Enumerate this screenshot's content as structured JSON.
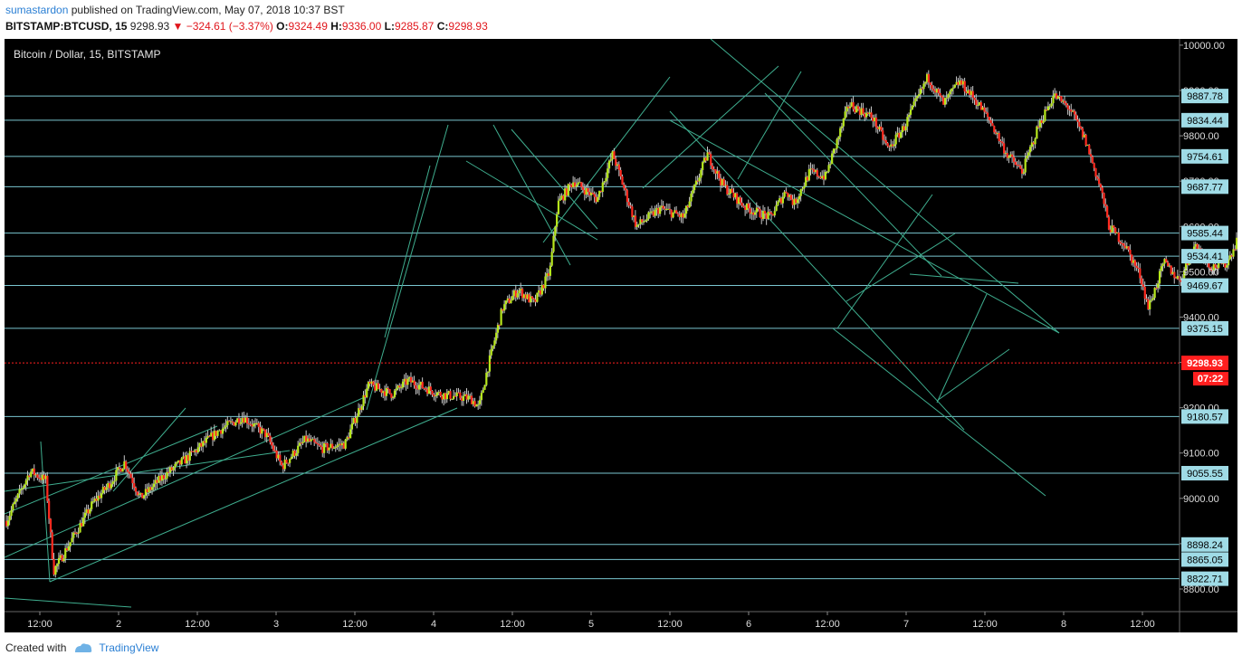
{
  "header": {
    "author": "sumastardon",
    "published_text": "published on TradingView.com, May 07, 2018 10:37 BST",
    "symbol": "BITSTAMP:BTCUSD, 15",
    "last": "9298.93",
    "change": "▼ −324.61 (−3.37%)",
    "ohlc": {
      "o_label": "O:",
      "o": "9324.49",
      "h_label": "H:",
      "h": "9336.00",
      "l_label": "L:",
      "l": "9285.87",
      "c_label": "C:",
      "c": "9298.93"
    }
  },
  "legend_title": "Bitcoin / Dollar, 15, BITSTAMP",
  "footer": {
    "created_with": "Created with",
    "brand": "TradingView"
  },
  "colors": {
    "background": "#000000",
    "up": "#b7e81c",
    "down": "#ff2a1f",
    "level_line": "#7ac6d0",
    "trend_line": "#3fae8f",
    "price_marker": "#ff1f1f",
    "level_label_bg": "#9fdbe6",
    "axis_text": "#dddddd"
  },
  "chart_data": {
    "type": "candlestick",
    "title": "Bitcoin / Dollar, 15, BITSTAMP",
    "ylim": [
      8760,
      10050
    ],
    "y_ticks": [
      "10000.00",
      "9900.00",
      "9800.00",
      "9700.00",
      "9600.00",
      "9500.00",
      "9400.00",
      "9300.00",
      "9200.00",
      "9100.00",
      "9000.00",
      "8900.00",
      "8800.00"
    ],
    "x_ticks": [
      {
        "label": "12:00",
        "day": 0.5
      },
      {
        "label": "2",
        "day": 1
      },
      {
        "label": "12:00",
        "day": 1.5
      },
      {
        "label": "3",
        "day": 2
      },
      {
        "label": "12:00",
        "day": 2.5
      },
      {
        "label": "4",
        "day": 3
      },
      {
        "label": "12:00",
        "day": 3.5
      },
      {
        "label": "5",
        "day": 4
      },
      {
        "label": "12:00",
        "day": 4.5
      },
      {
        "label": "6",
        "day": 5
      },
      {
        "label": "12:00",
        "day": 5.5
      },
      {
        "label": "7",
        "day": 6
      },
      {
        "label": "12:00",
        "day": 6.5
      },
      {
        "label": "8",
        "day": 7
      },
      {
        "label": "12:00",
        "day": 7.5
      }
    ],
    "levels": [
      "9887.78",
      "9834.44",
      "9754.61",
      "9687.77",
      "9585.44",
      "9534.41",
      "9469.67",
      "9375.15",
      "9180.57",
      "9055.55",
      "8898.24",
      "8865.05",
      "8822.71"
    ],
    "current_price": "9298.93",
    "countdown": "07:22",
    "price_path": [
      [
        0.0,
        8950
      ],
      [
        0.15,
        9060
      ],
      [
        0.25,
        9040
      ],
      [
        0.3,
        8840
      ],
      [
        0.4,
        8900
      ],
      [
        0.55,
        8990
      ],
      [
        0.65,
        9030
      ],
      [
        0.75,
        9080
      ],
      [
        0.85,
        9000
      ],
      [
        1.0,
        9050
      ],
      [
        1.15,
        9090
      ],
      [
        1.35,
        9150
      ],
      [
        1.5,
        9180
      ],
      [
        1.65,
        9140
      ],
      [
        1.75,
        9070
      ],
      [
        1.9,
        9130
      ],
      [
        2.0,
        9110
      ],
      [
        2.15,
        9120
      ],
      [
        2.3,
        9250
      ],
      [
        2.45,
        9230
      ],
      [
        2.55,
        9260
      ],
      [
        2.75,
        9230
      ],
      [
        2.95,
        9220
      ],
      [
        3.0,
        9200
      ],
      [
        3.05,
        9280
      ],
      [
        3.15,
        9420
      ],
      [
        3.25,
        9460
      ],
      [
        3.35,
        9430
      ],
      [
        3.45,
        9500
      ],
      [
        3.5,
        9650
      ],
      [
        3.6,
        9700
      ],
      [
        3.75,
        9660
      ],
      [
        3.85,
        9760
      ],
      [
        4.0,
        9600
      ],
      [
        4.15,
        9640
      ],
      [
        4.3,
        9620
      ],
      [
        4.45,
        9760
      ],
      [
        4.55,
        9690
      ],
      [
        4.7,
        9640
      ],
      [
        4.85,
        9620
      ],
      [
        4.95,
        9680
      ],
      [
        5.0,
        9650
      ],
      [
        5.1,
        9720
      ],
      [
        5.2,
        9710
      ],
      [
        5.35,
        9870
      ],
      [
        5.5,
        9840
      ],
      [
        5.6,
        9770
      ],
      [
        5.7,
        9820
      ],
      [
        5.85,
        9930
      ],
      [
        5.95,
        9870
      ],
      [
        6.05,
        9920
      ],
      [
        6.15,
        9880
      ],
      [
        6.25,
        9830
      ],
      [
        6.35,
        9760
      ],
      [
        6.45,
        9720
      ],
      [
        6.55,
        9820
      ],
      [
        6.65,
        9890
      ],
      [
        6.75,
        9860
      ],
      [
        6.85,
        9790
      ],
      [
        6.95,
        9680
      ],
      [
        7.0,
        9600
      ],
      [
        7.1,
        9560
      ],
      [
        7.2,
        9490
      ],
      [
        7.25,
        9420
      ],
      [
        7.35,
        9520
      ],
      [
        7.45,
        9480
      ],
      [
        7.55,
        9560
      ],
      [
        7.65,
        9510
      ],
      [
        7.75,
        9520
      ],
      [
        7.85,
        9600
      ],
      [
        7.92,
        9640
      ],
      [
        7.98,
        9530
      ],
      [
        8.05,
        9410
      ],
      [
        8.1,
        9280
      ],
      [
        8.2,
        9250
      ],
      [
        8.3,
        9320
      ],
      [
        8.4,
        9340
      ],
      [
        8.5,
        9270
      ],
      [
        8.6,
        9330
      ],
      [
        8.65,
        9299
      ]
    ]
  }
}
